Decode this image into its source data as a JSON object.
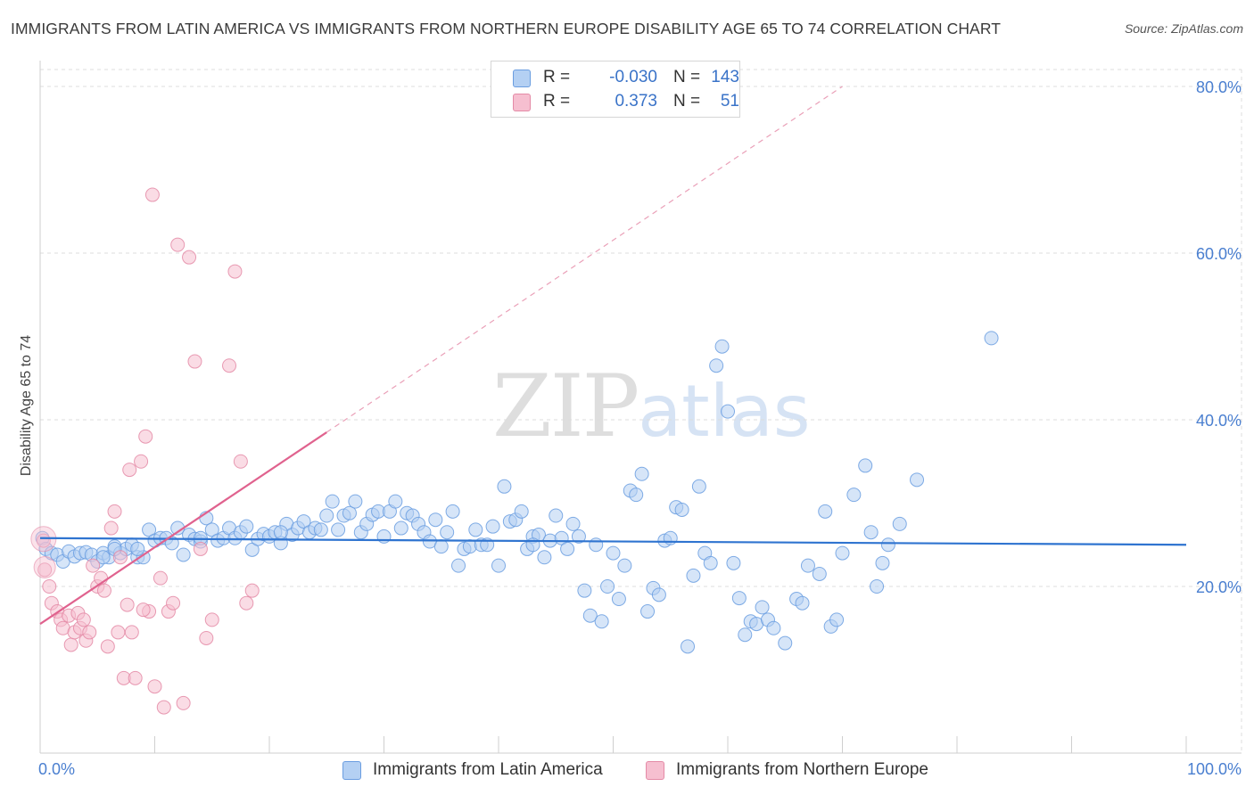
{
  "title": "IMMIGRANTS FROM LATIN AMERICA VS IMMIGRANTS FROM NORTHERN EUROPE DISABILITY AGE 65 TO 74 CORRELATION CHART",
  "source": "Source: ZipAtlas.com",
  "watermark": {
    "zip": "ZIP",
    "atlas": "atlas"
  },
  "legend": {
    "rows": [
      {
        "r_label": "R =",
        "r_value": "-0.030",
        "n_label": "N =",
        "n_value": "143",
        "color": "#a8c8f0"
      },
      {
        "r_label": "R =",
        "r_value": "0.373",
        "n_label": "N =",
        "n_value": "51",
        "color": "#f6b6c8"
      }
    ]
  },
  "bottom_legend": [
    {
      "label": "Immigrants from Latin America",
      "color": "#a8c8f0"
    },
    {
      "label": "Immigrants from Northern Europe",
      "color": "#f6b6c8"
    }
  ],
  "chart_data": {
    "type": "scatter",
    "title": "IMMIGRANTS FROM LATIN AMERICA VS IMMIGRANTS FROM NORTHERN EUROPE DISABILITY AGE 65 TO 74 CORRELATION CHART",
    "xlabel": "",
    "ylabel": "Disability Age 65 to 74",
    "xlim": [
      0,
      100
    ],
    "ylim": [
      0,
      80
    ],
    "x_tick_labels": [
      "0.0%",
      "100.0%"
    ],
    "y_ticks": [
      20,
      40,
      60,
      80
    ],
    "y_tick_labels": [
      "20.0%",
      "40.0%",
      "60.0%",
      "80.0%"
    ],
    "grid": true,
    "series": [
      {
        "name": "Immigrants from Latin America",
        "color": "#6a9de0",
        "fill": "#b4d0f3",
        "trend": {
          "x": [
            0,
            100
          ],
          "y": [
            25.8,
            25.0
          ]
        },
        "points": [
          [
            0.2,
            25.8
          ],
          [
            0.5,
            24.5
          ],
          [
            1.0,
            24.0
          ],
          [
            1.5,
            23.8
          ],
          [
            2.0,
            23.0
          ],
          [
            2.5,
            24.2
          ],
          [
            3.0,
            23.6
          ],
          [
            3.5,
            24.0
          ],
          [
            4.0,
            24.1
          ],
          [
            4.5,
            23.8
          ],
          [
            5.0,
            23.0
          ],
          [
            5.5,
            24.0
          ],
          [
            6.0,
            23.5
          ],
          [
            6.5,
            24.8
          ],
          [
            7.0,
            24.0
          ],
          [
            7.5,
            24.5
          ],
          [
            8.0,
            25.0
          ],
          [
            8.5,
            23.5
          ],
          [
            9.0,
            23.5
          ],
          [
            9.5,
            26.8
          ],
          [
            10.0,
            25.5
          ],
          [
            10.5,
            25.8
          ],
          [
            11.0,
            25.8
          ],
          [
            11.5,
            25.2
          ],
          [
            12.0,
            27.0
          ],
          [
            12.5,
            23.8
          ],
          [
            13.0,
            26.2
          ],
          [
            13.5,
            25.7
          ],
          [
            14.0,
            25.4
          ],
          [
            14.5,
            28.2
          ],
          [
            15.0,
            26.8
          ],
          [
            15.5,
            25.5
          ],
          [
            16.0,
            25.8
          ],
          [
            16.5,
            27.0
          ],
          [
            17.0,
            25.8
          ],
          [
            17.5,
            26.5
          ],
          [
            18.0,
            27.2
          ],
          [
            18.5,
            24.4
          ],
          [
            19.0,
            25.7
          ],
          [
            19.5,
            26.3
          ],
          [
            20.0,
            26.0
          ],
          [
            20.5,
            26.5
          ],
          [
            21.0,
            25.2
          ],
          [
            21.5,
            27.5
          ],
          [
            22.0,
            26.2
          ],
          [
            22.5,
            27.0
          ],
          [
            23.0,
            27.8
          ],
          [
            23.5,
            26.5
          ],
          [
            24.0,
            27.0
          ],
          [
            24.5,
            26.8
          ],
          [
            25.0,
            28.5
          ],
          [
            25.5,
            30.2
          ],
          [
            26.0,
            26.8
          ],
          [
            26.5,
            28.5
          ],
          [
            27.0,
            28.8
          ],
          [
            27.5,
            30.2
          ],
          [
            28.0,
            26.5
          ],
          [
            28.5,
            27.5
          ],
          [
            29.0,
            28.6
          ],
          [
            29.5,
            29.0
          ],
          [
            30.0,
            26.0
          ],
          [
            30.5,
            29.0
          ],
          [
            31.0,
            30.2
          ],
          [
            31.5,
            27.0
          ],
          [
            32.0,
            28.8
          ],
          [
            32.5,
            28.5
          ],
          [
            33.0,
            27.5
          ],
          [
            33.5,
            26.5
          ],
          [
            34.0,
            25.4
          ],
          [
            34.5,
            28.0
          ],
          [
            35.0,
            24.8
          ],
          [
            35.5,
            26.5
          ],
          [
            36.0,
            29.0
          ],
          [
            36.5,
            22.5
          ],
          [
            37.0,
            24.5
          ],
          [
            37.5,
            24.8
          ],
          [
            38.0,
            26.8
          ],
          [
            38.5,
            25.0
          ],
          [
            39.0,
            25.0
          ],
          [
            39.5,
            27.2
          ],
          [
            40.0,
            22.5
          ],
          [
            40.5,
            32.0
          ],
          [
            41.0,
            27.8
          ],
          [
            41.5,
            28.0
          ],
          [
            42.0,
            29.0
          ],
          [
            42.5,
            24.5
          ],
          [
            43.0,
            26.0
          ],
          [
            43.5,
            26.2
          ],
          [
            44.0,
            23.5
          ],
          [
            44.5,
            25.5
          ],
          [
            45.0,
            28.5
          ],
          [
            45.5,
            25.8
          ],
          [
            46.0,
            24.5
          ],
          [
            46.5,
            27.5
          ],
          [
            47.0,
            26.0
          ],
          [
            47.5,
            19.5
          ],
          [
            48.0,
            16.5
          ],
          [
            48.5,
            25.0
          ],
          [
            49.0,
            15.8
          ],
          [
            49.5,
            20.0
          ],
          [
            50.0,
            24.0
          ],
          [
            50.5,
            18.5
          ],
          [
            51.0,
            22.5
          ],
          [
            51.5,
            31.5
          ],
          [
            52.0,
            31.0
          ],
          [
            52.5,
            33.5
          ],
          [
            53.0,
            17.0
          ],
          [
            53.5,
            19.8
          ],
          [
            54.0,
            19.0
          ],
          [
            54.5,
            25.5
          ],
          [
            55.0,
            25.8
          ],
          [
            55.5,
            29.5
          ],
          [
            56.0,
            29.2
          ],
          [
            56.5,
            12.8
          ],
          [
            57.0,
            21.3
          ],
          [
            57.5,
            32.0
          ],
          [
            58.0,
            24.0
          ],
          [
            58.5,
            22.8
          ],
          [
            59.0,
            46.5
          ],
          [
            59.5,
            48.8
          ],
          [
            60.0,
            41.0
          ],
          [
            60.5,
            22.8
          ],
          [
            61.0,
            18.6
          ],
          [
            61.5,
            14.2
          ],
          [
            62.0,
            15.8
          ],
          [
            62.5,
            15.5
          ],
          [
            63.0,
            17.5
          ],
          [
            63.5,
            16.0
          ],
          [
            64.0,
            15.0
          ],
          [
            65.0,
            13.2
          ],
          [
            66.0,
            18.5
          ],
          [
            66.5,
            18.0
          ],
          [
            67.0,
            22.5
          ],
          [
            68.0,
            21.5
          ],
          [
            68.5,
            29.0
          ],
          [
            69.0,
            15.2
          ],
          [
            69.5,
            16.0
          ],
          [
            70.0,
            24.0
          ],
          [
            71.0,
            31.0
          ],
          [
            72.0,
            34.5
          ],
          [
            72.5,
            26.5
          ],
          [
            73.0,
            20.0
          ],
          [
            73.5,
            22.8
          ],
          [
            75.0,
            27.5
          ],
          [
            76.5,
            32.8
          ],
          [
            83.0,
            49.8
          ],
          [
            74.0,
            25.0
          ],
          [
            43.0,
            25.0
          ],
          [
            21.0,
            26.5
          ],
          [
            14.0,
            25.8
          ],
          [
            5.5,
            23.5
          ],
          [
            6.5,
            24.5
          ],
          [
            8.5,
            24.5
          ]
        ]
      },
      {
        "name": "Immigrants from Northern Europe",
        "color": "#e48aa6",
        "fill": "#f6bfd0",
        "trend": {
          "x": [
            0,
            25
          ],
          "y": [
            15.5,
            38.5
          ]
        },
        "trend_extended": {
          "x": [
            25,
            70
          ],
          "y": [
            38.5,
            80
          ]
        },
        "points": [
          [
            0.3,
            25.5
          ],
          [
            0.4,
            22.0
          ],
          [
            0.8,
            20.0
          ],
          [
            1.0,
            18.0
          ],
          [
            1.5,
            17.0
          ],
          [
            1.8,
            16.0
          ],
          [
            2.0,
            15.0
          ],
          [
            2.5,
            16.5
          ],
          [
            2.7,
            13.0
          ],
          [
            3.0,
            14.5
          ],
          [
            3.3,
            16.8
          ],
          [
            3.5,
            15.0
          ],
          [
            3.8,
            16.0
          ],
          [
            4.0,
            13.5
          ],
          [
            4.3,
            14.5
          ],
          [
            4.6,
            22.5
          ],
          [
            5.0,
            20.0
          ],
          [
            5.3,
            21.0
          ],
          [
            5.6,
            19.5
          ],
          [
            5.9,
            12.8
          ],
          [
            6.2,
            27.0
          ],
          [
            6.5,
            29.0
          ],
          [
            6.8,
            14.5
          ],
          [
            7.0,
            23.5
          ],
          [
            7.3,
            9.0
          ],
          [
            7.6,
            17.8
          ],
          [
            7.8,
            34.0
          ],
          [
            8.0,
            14.5
          ],
          [
            8.3,
            9.0
          ],
          [
            8.8,
            35.0
          ],
          [
            9.2,
            38.0
          ],
          [
            9.5,
            17.0
          ],
          [
            9.8,
            67.0
          ],
          [
            10.0,
            8.0
          ],
          [
            10.5,
            21.0
          ],
          [
            10.8,
            5.5
          ],
          [
            11.2,
            17.0
          ],
          [
            11.6,
            18.0
          ],
          [
            12.0,
            61.0
          ],
          [
            12.5,
            6.0
          ],
          [
            13.0,
            59.5
          ],
          [
            13.5,
            47.0
          ],
          [
            14.0,
            24.5
          ],
          [
            14.5,
            13.8
          ],
          [
            15.0,
            16.0
          ],
          [
            16.5,
            46.5
          ],
          [
            17.0,
            57.8
          ],
          [
            17.5,
            35.0
          ],
          [
            18.0,
            18.0
          ],
          [
            18.5,
            19.5
          ],
          [
            9.0,
            17.2
          ]
        ]
      }
    ]
  }
}
